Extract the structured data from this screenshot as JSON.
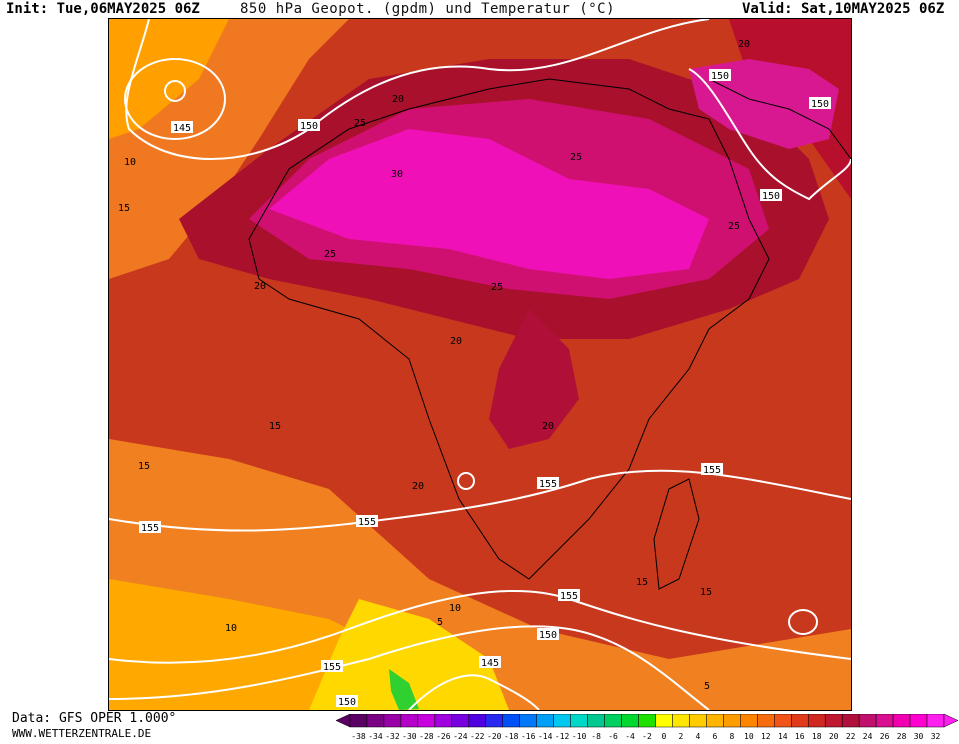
{
  "header": {
    "init": "Init: Tue,06MAY2025 06Z",
    "title": "850 hPa Geopot. (gpdm) und Temperatur (°C)",
    "valid": "Valid: Sat,10MAY2025 06Z"
  },
  "footer": {
    "data_source": "Data: GFS OPER 1.000°",
    "website": "WWW.WETTERZENTRALE.DE"
  },
  "map": {
    "region": "Africa",
    "geopotential_labels": [
      "145",
      "150",
      "150",
      "150",
      "150",
      "155",
      "155",
      "155",
      "155",
      "155",
      "150",
      "155",
      "145",
      "150"
    ],
    "temperature_labels": [
      "10",
      "15",
      "20",
      "25",
      "30",
      "25",
      "25",
      "25",
      "20",
      "20",
      "20",
      "15",
      "15",
      "15",
      "15",
      "10",
      "10",
      "5",
      "20",
      "25",
      "20",
      "5"
    ]
  },
  "colorbar": {
    "ticks": [
      "-38",
      "-34",
      "-32",
      "-30",
      "-28",
      "-26",
      "-24",
      "-22",
      "-20",
      "-18",
      "-16",
      "-14",
      "-12",
      "-10",
      "-8",
      "-6",
      "-4",
      "-2",
      "0",
      "2",
      "4",
      "6",
      "8",
      "10",
      "12",
      "14",
      "16",
      "18",
      "20",
      "22",
      "24",
      "26",
      "28",
      "30",
      "32"
    ],
    "colors": [
      "#5a0064",
      "#7a0084",
      "#9a00a8",
      "#b400c8",
      "#c800e0",
      "#a000e0",
      "#7800e0",
      "#5000e0",
      "#2828f0",
      "#0050f8",
      "#0078f8",
      "#00a0f8",
      "#00c8f0",
      "#00d8c8",
      "#00c890",
      "#00d060",
      "#00d830",
      "#20e000",
      "#ffff00",
      "#ffe600",
      "#ffcc00",
      "#ffb400",
      "#ff9c00",
      "#ff8400",
      "#f86c10",
      "#f05418",
      "#e03c1c",
      "#d02820",
      "#c01830",
      "#b0103c",
      "#c0106c",
      "#d81090",
      "#f000b0",
      "#ff00d0",
      "#ff20f0"
    ]
  }
}
